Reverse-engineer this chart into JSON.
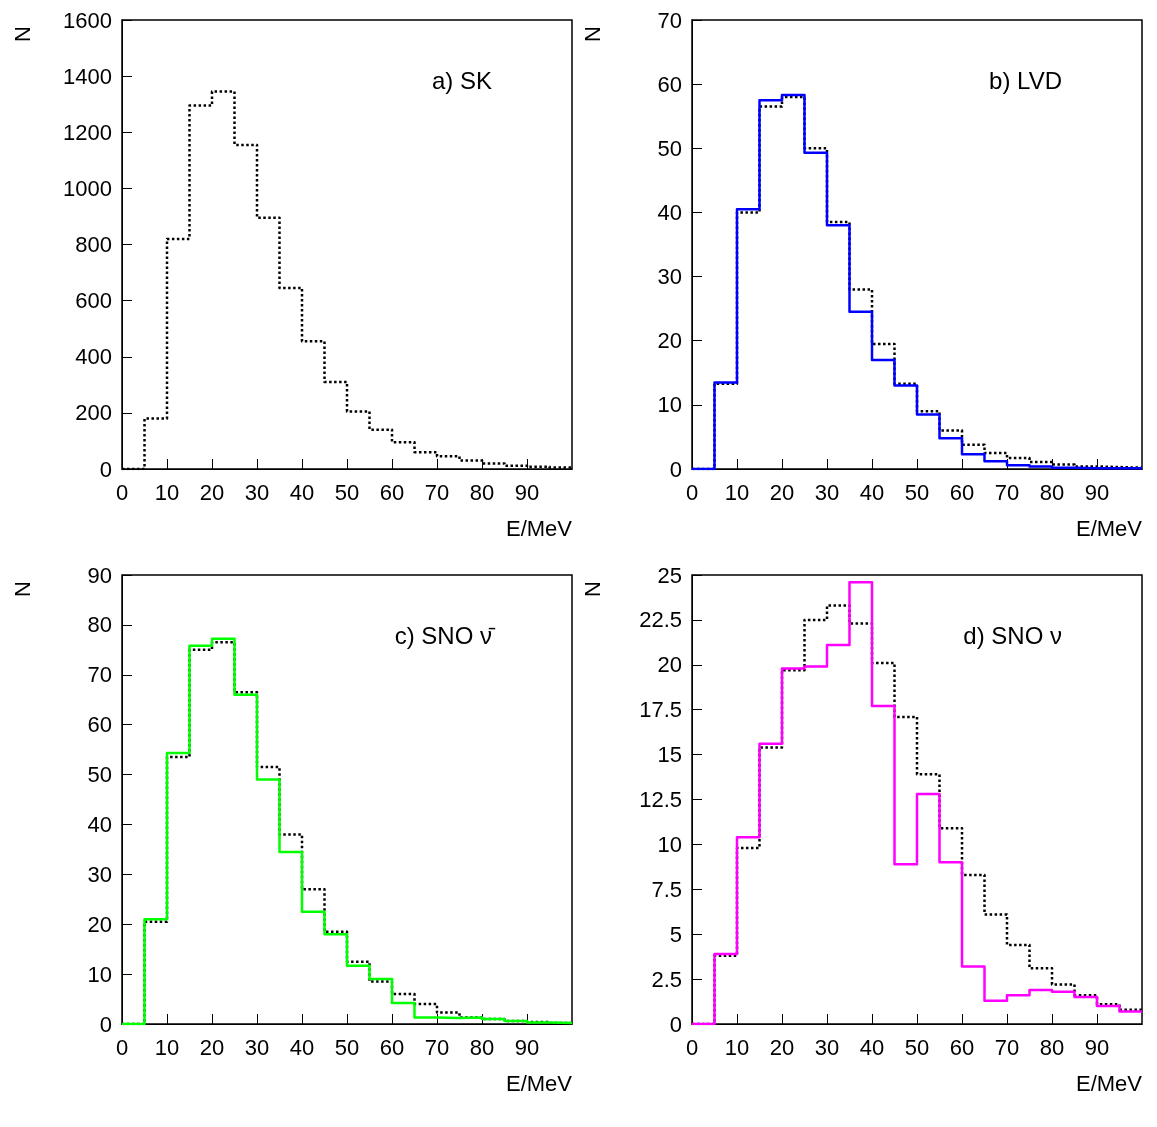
{
  "chart_data": [
    {
      "type": "histogram",
      "xlabel": "E/MeV",
      "ylabel": "N",
      "annotations": [
        "a) SK"
      ],
      "bins": [
        0,
        5,
        10,
        15,
        20,
        25,
        30,
        35,
        40,
        45,
        50,
        55,
        60,
        65,
        70,
        75,
        80,
        85,
        90,
        95,
        100
      ],
      "xlim": [
        0,
        100
      ],
      "xticks": [
        0,
        10,
        20,
        30,
        40,
        50,
        60,
        70,
        80,
        90
      ],
      "ylim": [
        0,
        1600
      ],
      "yticks": [
        0,
        200,
        400,
        600,
        800,
        1000,
        1200,
        1400,
        1600
      ],
      "series": [
        {
          "color": "#000000",
          "line_style": "dotted",
          "values": [
            0,
            180,
            820,
            1295,
            1345,
            1155,
            895,
            645,
            455,
            310,
            205,
            140,
            95,
            60,
            45,
            30,
            20,
            12,
            8,
            5
          ]
        }
      ]
    },
    {
      "type": "histogram",
      "xlabel": "E/MeV",
      "ylabel": "N",
      "annotations": [
        "b) LVD"
      ],
      "bins": [
        0,
        5,
        10,
        15,
        20,
        25,
        30,
        35,
        40,
        45,
        50,
        55,
        60,
        65,
        70,
        75,
        80,
        85,
        90,
        95,
        100
      ],
      "xlim": [
        0,
        100
      ],
      "xticks": [
        0,
        10,
        20,
        30,
        40,
        50,
        60,
        70,
        80,
        90
      ],
      "ylim": [
        0,
        70
      ],
      "yticks": [
        0,
        10,
        20,
        30,
        40,
        50,
        60,
        70
      ],
      "series": [
        {
          "color": "#000000",
          "line_style": "dotted",
          "values": [
            0,
            13.3,
            40,
            56.5,
            58,
            50,
            38.5,
            28,
            19.5,
            13.3,
            9,
            6,
            3.8,
            2.5,
            1.7,
            1.1,
            0.7,
            0.4,
            0.3,
            0.2
          ]
        },
        {
          "color": "#0000ff",
          "line_style": "solid",
          "values": [
            0,
            13.5,
            40.5,
            57.5,
            58.3,
            49.3,
            38,
            24.5,
            17,
            13,
            8.5,
            4.8,
            2.3,
            1.2,
            0.6,
            0.4,
            0.2,
            0.1,
            0.1,
            0.1
          ]
        }
      ]
    },
    {
      "type": "histogram",
      "xlabel": "E/MeV",
      "ylabel": "N",
      "annotations": [
        "c) SNO ν̄"
      ],
      "bins": [
        0,
        5,
        10,
        15,
        20,
        25,
        30,
        35,
        40,
        45,
        50,
        55,
        60,
        65,
        70,
        75,
        80,
        85,
        90,
        95,
        100
      ],
      "xlim": [
        0,
        100
      ],
      "xticks": [
        0,
        10,
        20,
        30,
        40,
        50,
        60,
        70,
        80,
        90
      ],
      "ylim": [
        0,
        90
      ],
      "yticks": [
        0,
        10,
        20,
        30,
        40,
        50,
        60,
        70,
        80,
        90
      ],
      "series": [
        {
          "color": "#000000",
          "line_style": "dotted",
          "values": [
            0,
            20.5,
            53.5,
            75,
            76.5,
            66.5,
            51.5,
            38,
            27,
            18.5,
            12.5,
            8.5,
            6,
            4,
            2.3,
            1.3,
            1,
            0.6,
            0.4,
            0.2
          ]
        },
        {
          "color": "#00ff00",
          "line_style": "solid",
          "values": [
            0,
            21,
            54.3,
            75.8,
            77.2,
            66,
            49,
            34.5,
            22.5,
            18,
            11.7,
            9,
            4.2,
            1.3,
            1.2,
            1.3,
            1,
            0.6,
            0.3,
            0.2
          ]
        }
      ]
    },
    {
      "type": "histogram",
      "xlabel": "E/MeV",
      "ylabel": "N",
      "annotations": [
        "d) SNO ν"
      ],
      "bins": [
        0,
        5,
        10,
        15,
        20,
        25,
        30,
        35,
        40,
        45,
        50,
        55,
        60,
        65,
        70,
        75,
        80,
        85,
        90,
        95,
        100
      ],
      "xlim": [
        0,
        100
      ],
      "xticks": [
        0,
        10,
        20,
        30,
        40,
        50,
        60,
        70,
        80,
        90
      ],
      "ylim": [
        0,
        25
      ],
      "yticks": [
        0,
        2.5,
        5,
        7.5,
        10,
        12.5,
        15,
        17.5,
        20,
        22.5,
        25
      ],
      "series": [
        {
          "color": "#000000",
          "line_style": "dotted",
          "values": [
            0,
            3.8,
            9.8,
            15.4,
            19.7,
            22.5,
            23.3,
            22.3,
            20.1,
            17.1,
            13.9,
            10.9,
            8.3,
            6.1,
            4.4,
            3.1,
            2.2,
            1.6,
            1.1,
            0.8
          ]
        },
        {
          "color": "#ff00ff",
          "line_style": "solid",
          "values": [
            0,
            3.9,
            10.4,
            15.6,
            19.8,
            19.9,
            21.1,
            24.6,
            17.7,
            8.9,
            12.8,
            9,
            3.2,
            1.3,
            1.6,
            1.9,
            1.8,
            1.5,
            1,
            0.7
          ]
        }
      ]
    }
  ]
}
